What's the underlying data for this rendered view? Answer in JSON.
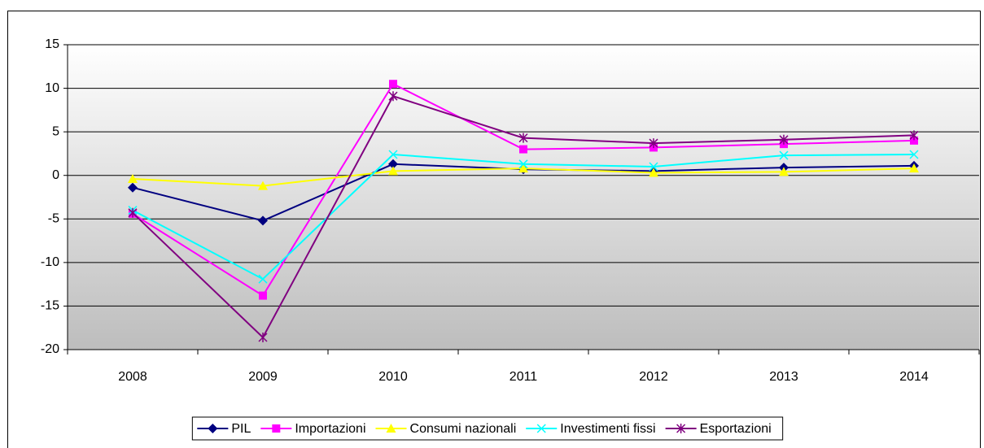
{
  "chart_data": {
    "type": "line",
    "categories": [
      "2008",
      "2009",
      "2010",
      "2011",
      "2012",
      "2013",
      "2014"
    ],
    "series": [
      {
        "name": "PIL",
        "color": "#000080",
        "marker": "diamond",
        "values": [
          -1.4,
          -5.2,
          1.3,
          0.7,
          0.5,
          0.9,
          1.1
        ]
      },
      {
        "name": "Importazioni",
        "color": "#ff00ff",
        "marker": "square",
        "values": [
          -4.4,
          -13.8,
          10.5,
          3.0,
          3.2,
          3.6,
          4.0
        ]
      },
      {
        "name": "Consumi nazionali",
        "color": "#ffff00",
        "marker": "triangle",
        "values": [
          -0.4,
          -1.2,
          0.5,
          0.8,
          0.3,
          0.4,
          0.8
        ]
      },
      {
        "name": "Investimenti fissi",
        "color": "#00ffff",
        "marker": "x",
        "values": [
          -4.0,
          -11.9,
          2.4,
          1.3,
          1.0,
          2.3,
          2.4
        ]
      },
      {
        "name": "Esportazioni",
        "color": "#800080",
        "marker": "star",
        "values": [
          -4.3,
          -18.6,
          9.1,
          4.3,
          3.7,
          4.1,
          4.6
        ]
      }
    ],
    "ylim": [
      -20,
      15
    ],
    "yticks": [
      -20,
      -15,
      -10,
      -5,
      0,
      5,
      10,
      15
    ],
    "grid": true,
    "legend": "bottom"
  }
}
